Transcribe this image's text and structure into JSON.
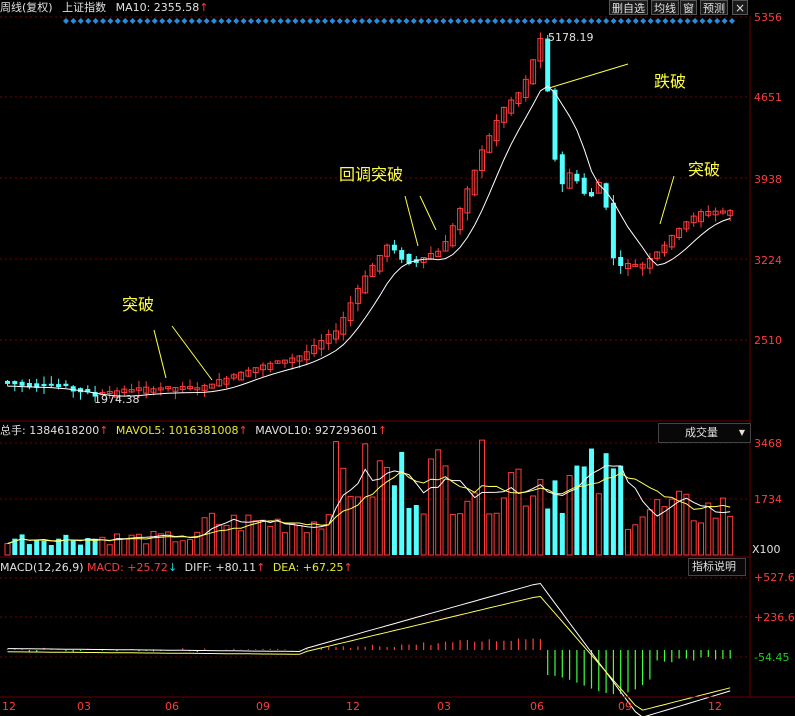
{
  "header": {
    "period_label": "周线(复权)",
    "index_name": "上证指数",
    "ma_label": "MA10: 2355.58",
    "ma_arrow": "↑",
    "buttons": [
      "删自选",
      "均线",
      "窗",
      "预测"
    ],
    "close_glyph": "×"
  },
  "price_axis": {
    "levels": [
      5356,
      4651,
      3938,
      3224,
      2510
    ]
  },
  "price_points": {
    "high": "5178.19",
    "low": "1974.38"
  },
  "annotations": {
    "breakout1": "突破",
    "pullback_breakout": "回调突破",
    "breakdown": "跌破",
    "breakout2": "突破"
  },
  "volume_panel": {
    "total_label": "总手: 1384618200",
    "mavol5_label": "MAVOL5: 1016381008",
    "mavol10_label": "MAVOL10: 927293601",
    "up_arrow": "↑",
    "dropdown_label": "成交量",
    "dropdown_arrow": "▼",
    "axis": {
      "top": "3468",
      "mid": "1734",
      "unit": "X100"
    }
  },
  "macd_panel": {
    "title": "MACD(12,26,9)",
    "macd_label": "MACD: +25.72",
    "macd_arrow": "↓",
    "diff_label": "DIFF: +80.11",
    "dea_label": "DEA: +67.25",
    "up_arrow": "↑",
    "help_button": "指标说明",
    "axis": {
      "top": "+527.6",
      "mid": "+236.6",
      "low": "-54.45"
    }
  },
  "x_axis": {
    "labels": [
      "12",
      "03",
      "06",
      "09",
      "12",
      "03",
      "06",
      "09",
      "12"
    ]
  },
  "colors": {
    "up": "#ff3c3c",
    "down": "#54ffff",
    "ma": "#ffffff",
    "grid": "#7a0000",
    "marker": "#2a8cd8",
    "annotation": "#ffff40"
  },
  "chart_data": {
    "type": "candlestick",
    "y_axis_levels": [
      5356,
      4651,
      3938,
      3224,
      2510
    ],
    "high": 5178.19,
    "low": 1974.38,
    "ma10_last": 2355.58,
    "volume": {
      "total": 1384618200,
      "mavol5": 1016381008,
      "mavol10": 927293601,
      "axis": [
        3468,
        1734
      ],
      "unit": "X100"
    },
    "macd": {
      "params": "12,26,9",
      "macd": 25.72,
      "diff": 80.11,
      "dea": 67.25,
      "axis": [
        527.6,
        236.6,
        -54.45
      ]
    }
  }
}
